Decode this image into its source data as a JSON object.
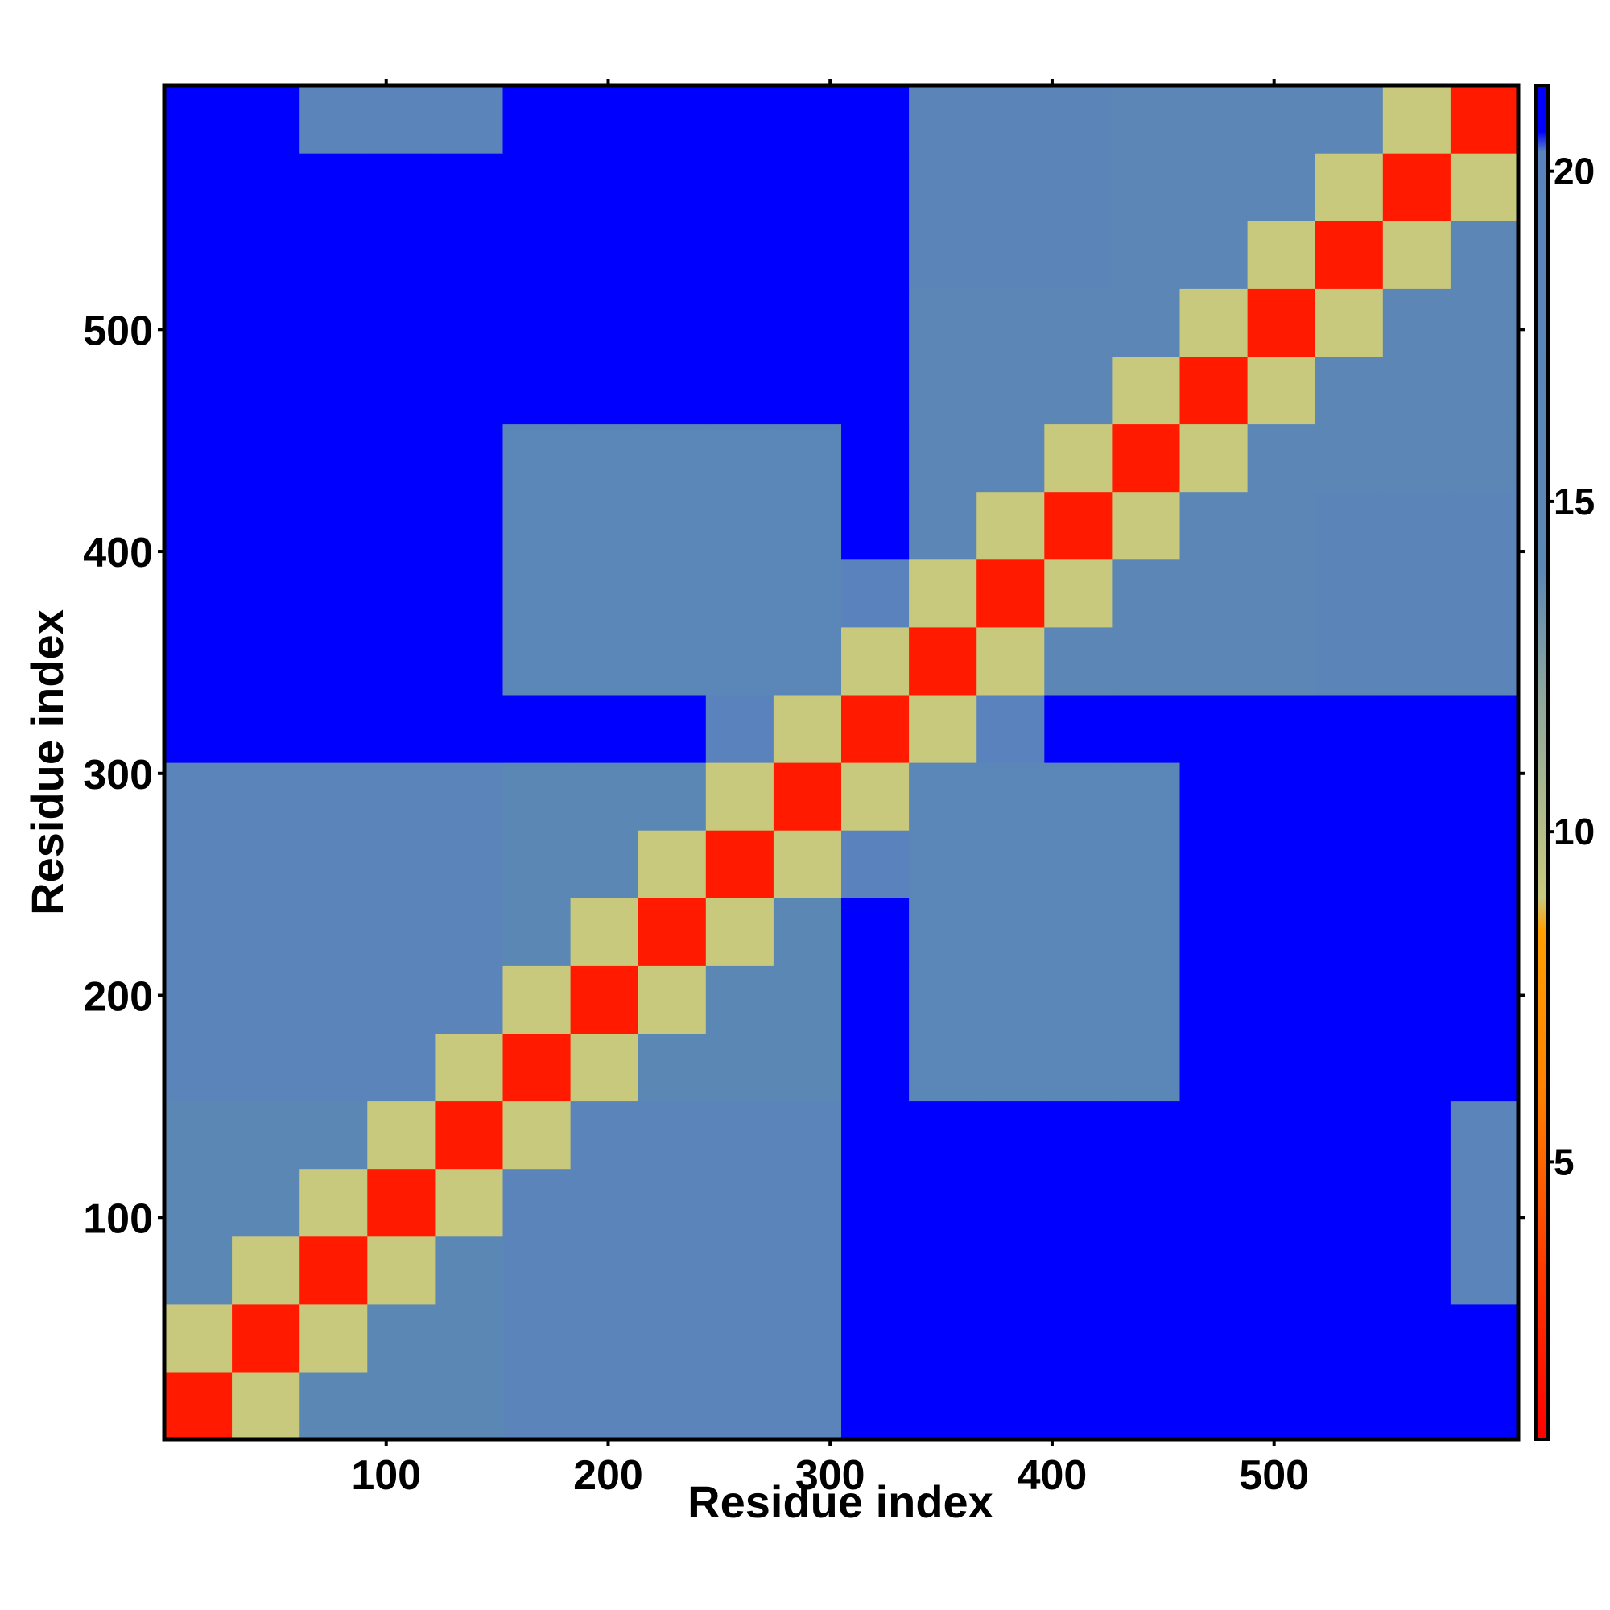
{
  "chart_data": {
    "type": "heatmap",
    "xlabel": "Residue index",
    "ylabel": "Residue index",
    "xbins": [
      0,
      30.5,
      61,
      91.5,
      122,
      152.5,
      183,
      213.5,
      244,
      274.5,
      305,
      335.5,
      366,
      396.5,
      427,
      457.5,
      488,
      518.5,
      549,
      579.5,
      610
    ],
    "ybins": [
      0,
      30.5,
      61,
      91.5,
      122,
      152.5,
      183,
      213.5,
      244,
      274.5,
      305,
      335.5,
      366,
      396.5,
      427,
      457.5,
      488,
      518.5,
      549,
      579.5,
      610
    ],
    "z": [
      [
        2,
        9,
        14,
        14,
        14,
        18,
        18,
        18,
        18,
        18,
        21,
        21,
        21,
        21,
        21,
        21,
        21,
        21,
        21,
        21
      ],
      [
        9,
        2,
        9,
        14,
        14,
        18,
        18,
        18,
        18,
        18,
        21,
        21,
        21,
        21,
        21,
        21,
        21,
        21,
        21,
        21
      ],
      [
        14,
        9,
        2,
        9,
        14,
        18,
        18,
        18,
        18,
        18,
        21,
        21,
        21,
        21,
        21,
        21,
        21,
        21,
        21,
        18
      ],
      [
        14,
        14,
        9,
        2,
        9,
        18,
        18,
        18,
        18,
        18,
        21,
        21,
        21,
        21,
        21,
        21,
        21,
        21,
        21,
        18
      ],
      [
        14,
        14,
        14,
        9,
        2,
        9,
        18,
        18,
        18,
        18,
        21,
        21,
        21,
        21,
        21,
        21,
        21,
        21,
        21,
        18
      ],
      [
        18,
        18,
        18,
        18,
        9,
        2,
        9,
        14,
        14,
        14,
        21,
        16,
        16,
        16,
        16,
        21,
        21,
        21,
        21,
        21
      ],
      [
        18,
        18,
        18,
        18,
        18,
        9,
        2,
        9,
        14,
        14,
        21,
        16,
        16,
        16,
        16,
        21,
        21,
        21,
        21,
        21
      ],
      [
        18,
        18,
        18,
        18,
        18,
        14,
        9,
        2,
        9,
        14,
        21,
        16,
        16,
        16,
        16,
        21,
        21,
        21,
        21,
        21
      ],
      [
        18,
        18,
        18,
        18,
        18,
        14,
        14,
        9,
        2,
        9,
        20,
        16,
        16,
        16,
        16,
        21,
        21,
        21,
        21,
        21
      ],
      [
        18,
        18,
        18,
        18,
        18,
        14,
        14,
        14,
        9,
        2,
        9,
        16,
        16,
        16,
        16,
        21,
        21,
        21,
        21,
        21
      ],
      [
        21,
        21,
        21,
        21,
        21,
        21,
        21,
        21,
        20,
        9,
        2,
        9,
        20,
        21,
        21,
        21,
        21,
        21,
        21,
        21
      ],
      [
        21,
        21,
        21,
        21,
        21,
        16,
        16,
        16,
        16,
        16,
        9,
        2,
        9,
        15,
        15,
        15,
        15,
        17,
        17,
        17
      ],
      [
        21,
        21,
        21,
        21,
        21,
        16,
        16,
        16,
        16,
        16,
        20,
        9,
        2,
        9,
        15,
        15,
        15,
        17,
        17,
        17
      ],
      [
        21,
        21,
        21,
        21,
        21,
        16,
        16,
        16,
        16,
        16,
        21,
        15,
        9,
        2,
        9,
        15,
        15,
        17,
        17,
        17
      ],
      [
        21,
        21,
        21,
        21,
        21,
        16,
        16,
        16,
        16,
        16,
        21,
        15,
        15,
        9,
        2,
        9,
        15,
        15,
        15,
        15
      ],
      [
        21,
        21,
        21,
        21,
        21,
        21,
        21,
        21,
        21,
        21,
        21,
        15,
        15,
        15,
        9,
        2,
        9,
        15,
        15,
        15
      ],
      [
        21,
        21,
        21,
        21,
        21,
        21,
        21,
        21,
        21,
        21,
        21,
        15,
        15,
        15,
        15,
        9,
        2,
        9,
        15,
        15
      ],
      [
        21,
        21,
        21,
        21,
        21,
        21,
        21,
        21,
        21,
        21,
        21,
        17,
        17,
        17,
        15,
        15,
        9,
        2,
        9,
        15
      ],
      [
        21,
        21,
        21,
        21,
        21,
        21,
        21,
        21,
        21,
        21,
        21,
        17,
        17,
        17,
        15,
        15,
        15,
        9,
        2,
        9
      ],
      [
        21,
        21,
        18,
        18,
        18,
        21,
        21,
        21,
        21,
        21,
        21,
        17,
        17,
        17,
        15,
        15,
        15,
        15,
        9,
        2
      ]
    ],
    "xlim": [
      0,
      610
    ],
    "ylim": [
      0,
      610
    ],
    "xticks": [
      100,
      200,
      300,
      400,
      500
    ],
    "yticks": [
      100,
      200,
      300,
      400,
      500
    ],
    "colorbar": {
      "clim": [
        0.8,
        21.3
      ],
      "ticks": [
        5,
        10,
        15,
        20
      ],
      "stops": [
        {
          "value": 0.8,
          "color": "#ff0000"
        },
        {
          "value": 3,
          "color": "#ff3000"
        },
        {
          "value": 6,
          "color": "#ff8000"
        },
        {
          "value": 8.5,
          "color": "#ffa000"
        },
        {
          "value": 9,
          "color": "#c9c97e"
        },
        {
          "value": 12,
          "color": "#8fa89c"
        },
        {
          "value": 14,
          "color": "#5b87b5"
        },
        {
          "value": 20.3,
          "color": "#5a83bd"
        },
        {
          "value": 20.6,
          "color": "#0000ff"
        },
        {
          "value": 21.3,
          "color": "#0000ff"
        }
      ]
    }
  }
}
